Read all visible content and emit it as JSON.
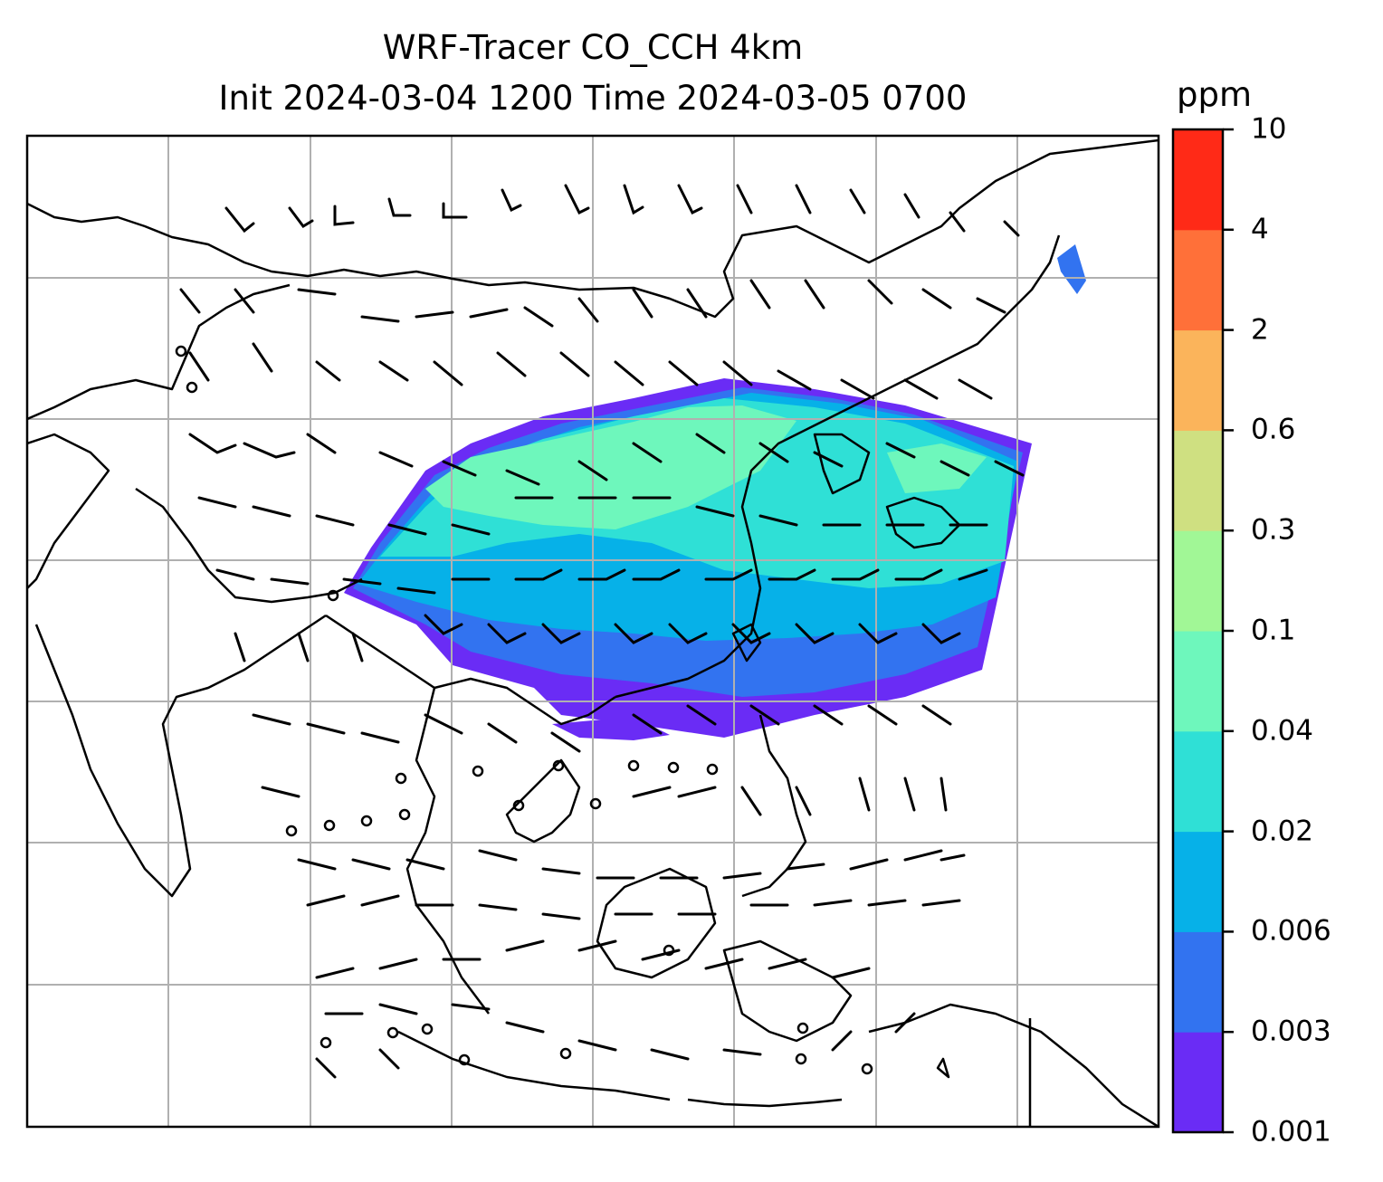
{
  "title_line1": "WRF-Tracer CO_CCH 4km",
  "title_line2": "Init 2024-03-04 1200 Time 2024-03-05 0700",
  "colorbar": {
    "unit": "ppm",
    "levels": [
      "0.001",
      "0.003",
      "0.006",
      "0.02",
      "0.04",
      "0.1",
      "0.3",
      "0.6",
      "2",
      "4",
      "10"
    ],
    "colors": [
      "#6a2cf5",
      "#3273f0",
      "#06b1e8",
      "#2fe0d6",
      "#6ef7bc",
      "#a1f796",
      "#cfe081",
      "#fbb45b",
      "#ff7039",
      "#ff2a17"
    ]
  },
  "map": {
    "gridlines": true,
    "field_colors": {
      "low": "#6a2cf5",
      "low2": "#3273f0",
      "mid": "#06b1e8",
      "mid2": "#2fe0d6",
      "high": "#6ef7bc"
    }
  }
}
